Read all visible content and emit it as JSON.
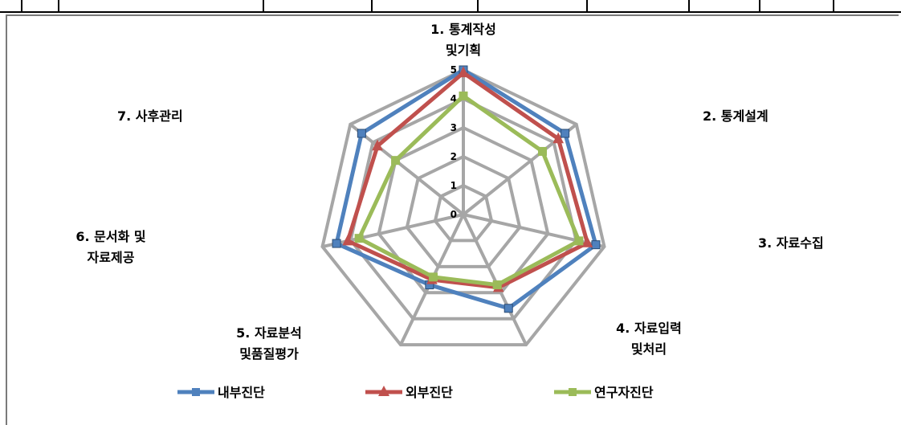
{
  "chart_data": {
    "type": "radar",
    "categories": [
      {
        "lines": [
          "1. 통계작성",
          "및기획"
        ]
      },
      {
        "lines": [
          "2. 통계설계"
        ]
      },
      {
        "lines": [
          "3. 자료수집"
        ]
      },
      {
        "lines": [
          "4. 자료입력",
          "및처리"
        ]
      },
      {
        "lines": [
          "5. 자료분석",
          "및품질평가"
        ]
      },
      {
        "lines": [
          "6. 문서화 및",
          "자료제공"
        ]
      },
      {
        "lines": [
          "7. 사후관리"
        ]
      }
    ],
    "rlim": [
      0,
      5
    ],
    "ticks": [
      0,
      1,
      2,
      3,
      4,
      5
    ],
    "series": [
      {
        "name": "내부진단",
        "color": "#4f81bd",
        "marker": "square",
        "values": [
          5.0,
          4.5,
          4.7,
          3.6,
          2.7,
          4.5,
          4.5
        ]
      },
      {
        "name": "외부진단",
        "color": "#c0504d",
        "marker": "triangle",
        "values": [
          4.9,
          4.2,
          4.4,
          2.8,
          2.5,
          4.1,
          3.8
        ]
      },
      {
        "name": "연구자진단",
        "color": "#9bbb59",
        "marker": "square",
        "values": [
          4.1,
          3.5,
          4.1,
          2.7,
          2.4,
          3.7,
          3.0
        ]
      }
    ],
    "legend_position": "bottom",
    "grid": true
  }
}
